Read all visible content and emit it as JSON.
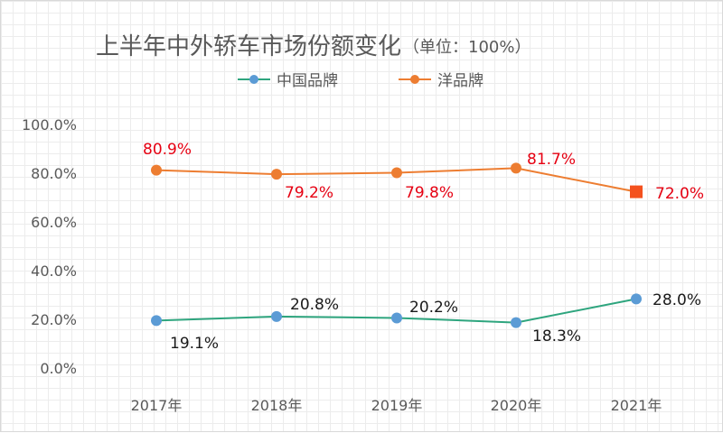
{
  "chart_data": {
    "type": "line",
    "title": "上半年中外轿车市场份额变化",
    "subtitle": "（单位：100%）",
    "categories": [
      "2017年",
      "2018年",
      "2019年",
      "2020年",
      "2021年"
    ],
    "ylim": [
      0,
      100
    ],
    "yticks": [
      "0.0%",
      "20.0%",
      "40.0%",
      "60.0%",
      "80.0%",
      "100.0%"
    ],
    "legend_position": "top-center",
    "series": [
      {
        "name": "中国品牌",
        "color": "#2ea57e",
        "marker_color": "#5b9bd5",
        "values": [
          19.1,
          20.8,
          20.2,
          18.3,
          28.0
        ],
        "labels": [
          "19.1%",
          "20.8%",
          "20.2%",
          "18.3%",
          "28.0%"
        ],
        "label_color": "#1a1a1a"
      },
      {
        "name": "洋品牌",
        "color": "#ed7d31",
        "marker_color": "#ed7d31",
        "last_marker_color": "#f4511e",
        "values": [
          80.9,
          79.2,
          79.8,
          81.7,
          72.0
        ],
        "labels": [
          "80.9%",
          "79.2%",
          "79.8%",
          "81.7%",
          "72.0%"
        ],
        "label_color": "#e60012"
      }
    ]
  }
}
